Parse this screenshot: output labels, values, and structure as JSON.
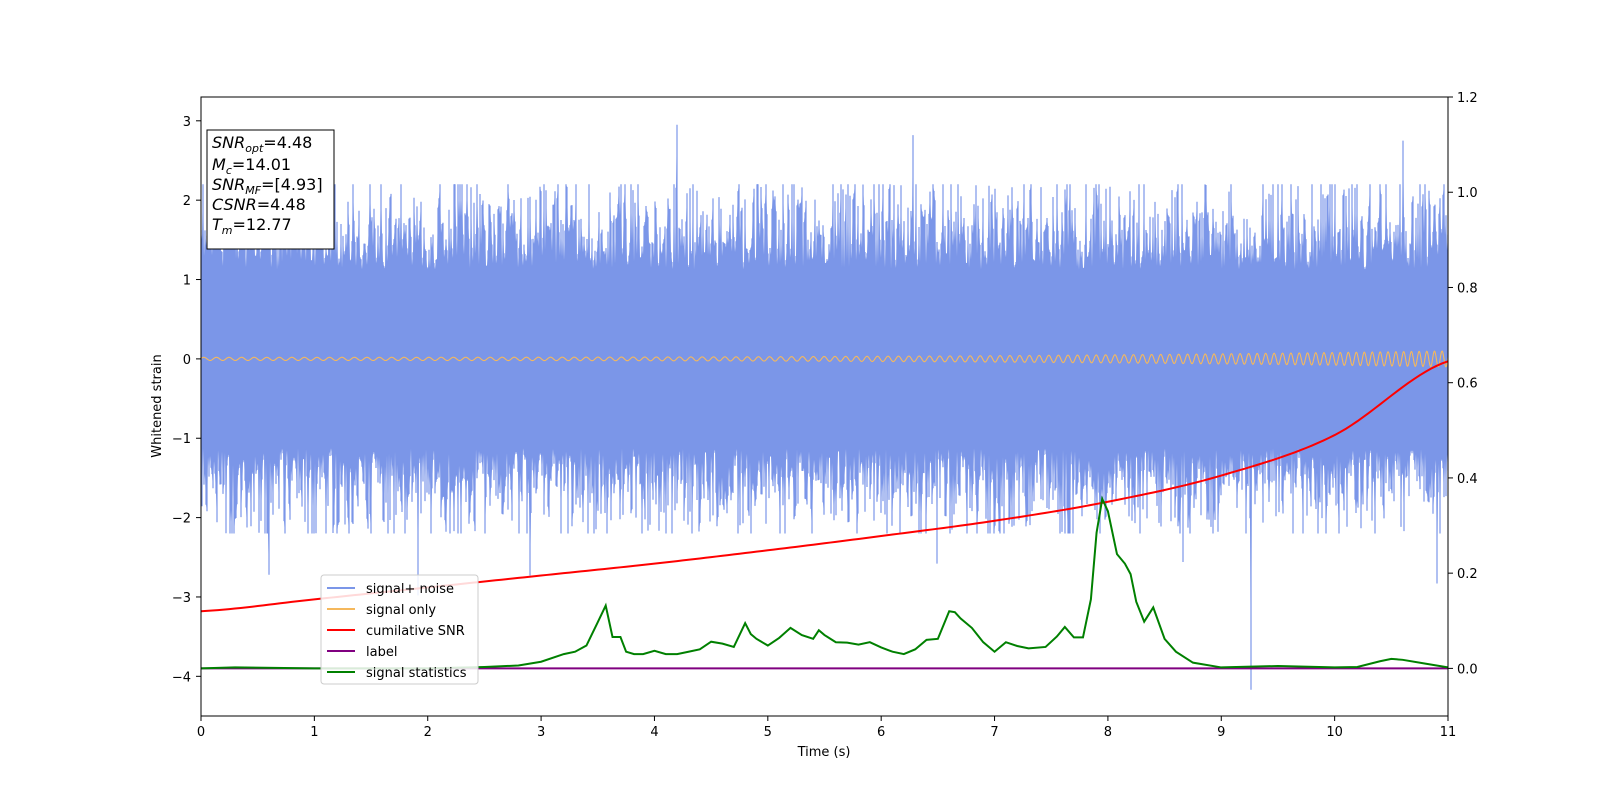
{
  "chart_data": {
    "type": "line",
    "title": "",
    "xlabel": "Time (s)",
    "ylabel": "Whitened strain",
    "xlim": [
      0,
      11
    ],
    "ylim_left": [
      -4.5,
      3.3
    ],
    "ylim_right": [
      -0.1,
      1.2
    ],
    "x_ticks": [
      0,
      1,
      2,
      3,
      4,
      5,
      6,
      7,
      8,
      9,
      10,
      11
    ],
    "x_tick_labels": [
      "0",
      "1",
      "2",
      "3",
      "4",
      "5",
      "6",
      "7",
      "8",
      "9",
      "10",
      "11"
    ],
    "y_left_ticks": [
      3,
      2,
      1,
      0,
      -1,
      -2,
      -3,
      -4
    ],
    "y_left_tick_labels": [
      "3",
      "2",
      "1",
      "0",
      "−1",
      "−2",
      "−3",
      "−4"
    ],
    "y_right_ticks": [
      1.2,
      1.0,
      0.8,
      0.6,
      0.4,
      0.2,
      0.0
    ],
    "y_right_tick_labels": [
      "1.2",
      "1.0",
      "0.8",
      "0.6",
      "0.4",
      "0.2",
      "0.0"
    ],
    "grid": false,
    "legend_placement": "lower-left",
    "annotation": {
      "lines": [
        {
          "base": "SNR",
          "sub": "opt",
          "value": "=4.48"
        },
        {
          "base": "M",
          "sub": "c",
          "value": "=14.01"
        },
        {
          "base": "SNR",
          "sub": "MF",
          "value": "=[4.93]"
        },
        {
          "base": "CSNR",
          "sub": "",
          "value": "=4.48"
        },
        {
          "base": "T",
          "sub": "m",
          "value": "=12.77"
        }
      ]
    },
    "series": [
      {
        "name": "signal+ noise",
        "axis": "left",
        "color": "#7B96E8",
        "kind": "noise",
        "typical_envelope": [
          -1.5,
          1.5
        ],
        "peaks": [
          {
            "x": 0.6,
            "y": -2.72
          },
          {
            "x": 1.91,
            "y": -2.98
          },
          {
            "x": 2.9,
            "y": -2.73
          },
          {
            "x": 4.2,
            "y": 2.95
          },
          {
            "x": 6.28,
            "y": 2.82
          },
          {
            "x": 9.26,
            "y": -4.17
          },
          {
            "x": 10.6,
            "y": 2.75
          },
          {
            "x": 10.9,
            "y": -2.83
          },
          {
            "x": 8.66,
            "y": -2.56
          },
          {
            "x": 6.49,
            "y": -2.58
          }
        ]
      },
      {
        "name": "signal only",
        "axis": "left",
        "color": "#F5B85C",
        "kind": "chirp",
        "amplitude_start": 0.02,
        "amplitude_end": 0.1
      },
      {
        "name": "cumilative SNR",
        "axis": "right",
        "color": "#FF0000",
        "x": [
          0,
          1,
          2,
          3,
          4,
          5,
          6,
          7,
          8,
          9,
          10,
          11
        ],
        "y": [
          0.12,
          0.145,
          0.17,
          0.195,
          0.22,
          0.248,
          0.278,
          0.31,
          0.35,
          0.405,
          0.49,
          0.645
        ]
      },
      {
        "name": "label",
        "axis": "right",
        "color": "#800080",
        "x": [
          0,
          11
        ],
        "y": [
          0.0,
          0.0
        ]
      },
      {
        "name": "signal statistics",
        "axis": "right",
        "color": "#008000",
        "x": [
          0,
          0.3,
          1.0,
          2.0,
          2.5,
          2.8,
          3.0,
          3.2,
          3.3,
          3.4,
          3.5,
          3.57,
          3.63,
          3.7,
          3.75,
          3.82,
          3.9,
          4.0,
          4.1,
          4.2,
          4.3,
          4.4,
          4.5,
          4.6,
          4.7,
          4.8,
          4.85,
          4.9,
          5.0,
          5.1,
          5.2,
          5.3,
          5.4,
          5.45,
          5.5,
          5.6,
          5.7,
          5.8,
          5.9,
          6.0,
          6.1,
          6.2,
          6.3,
          6.4,
          6.5,
          6.6,
          6.65,
          6.7,
          6.8,
          6.9,
          7.0,
          7.1,
          7.2,
          7.3,
          7.45,
          7.55,
          7.62,
          7.7,
          7.78,
          7.85,
          7.9,
          7.95,
          8.0,
          8.08,
          8.15,
          8.2,
          8.25,
          8.32,
          8.4,
          8.5,
          8.6,
          8.75,
          9.0,
          9.5,
          10.0,
          10.2,
          10.4,
          10.5,
          10.6,
          10.8,
          11.0
        ],
        "y": [
          0.0,
          0.002,
          0.0,
          0.0,
          0.003,
          0.006,
          0.014,
          0.03,
          0.035,
          0.048,
          0.097,
          0.132,
          0.066,
          0.066,
          0.035,
          0.03,
          0.03,
          0.037,
          0.03,
          0.03,
          0.035,
          0.04,
          0.056,
          0.052,
          0.045,
          0.095,
          0.072,
          0.062,
          0.048,
          0.064,
          0.085,
          0.07,
          0.062,
          0.08,
          0.07,
          0.055,
          0.054,
          0.05,
          0.055,
          0.044,
          0.035,
          0.03,
          0.04,
          0.06,
          0.062,
          0.12,
          0.118,
          0.105,
          0.085,
          0.055,
          0.035,
          0.055,
          0.047,
          0.042,
          0.045,
          0.067,
          0.087,
          0.065,
          0.065,
          0.145,
          0.285,
          0.356,
          0.33,
          0.24,
          0.22,
          0.198,
          0.14,
          0.098,
          0.128,
          0.062,
          0.035,
          0.012,
          0.002,
          0.005,
          0.002,
          0.003,
          0.015,
          0.02,
          0.018,
          0.01,
          0.002
        ]
      }
    ]
  }
}
